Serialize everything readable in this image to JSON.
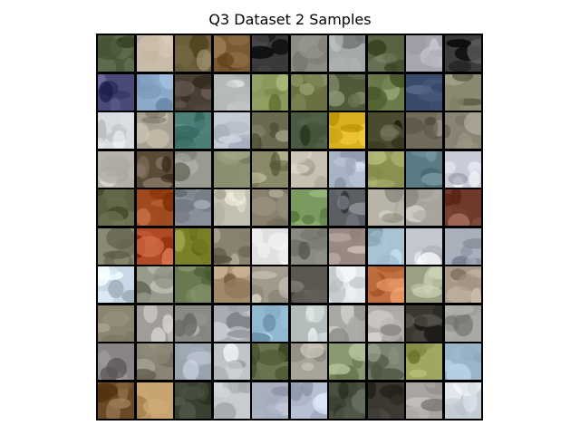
{
  "figure": {
    "title": "Q3 Dataset 2 Samples"
  },
  "grid": {
    "rows": 10,
    "cols": 10,
    "samples": [
      [
        "#4d5a3c",
        "#c8bba8",
        "#6a5f3a",
        "#7a5a32",
        "#3a3838",
        "#8c8c84",
        "#a4a8a6",
        "#5a6244",
        "#a8a4b0",
        "#3c3c3c"
      ],
      [
        "#4a4a7a",
        "#8aa8c8",
        "#4a3f34",
        "#b4b8b8",
        "#8a9a5c",
        "#6a7040",
        "#505a3a",
        "#6a7a4a",
        "#3a4a6a",
        "#8a8870"
      ],
      [
        "#d8dce0",
        "#a8a090",
        "#4a8078",
        "#c4ccd8",
        "#6a6a50",
        "#4a5a40",
        "#d8b020",
        "#4a4a30",
        "#706a5a",
        "#8a8474"
      ],
      [
        "#b8b4ac",
        "#5a4a38",
        "#9a9a90",
        "#8a9070",
        "#8a8a6a",
        "#c8c0b0",
        "#a8b4c4",
        "#8a9050",
        "#5a7a84",
        "#c8ccd8"
      ],
      [
        "#5a6040",
        "#a04a20",
        "#8a909a",
        "#c4c0b0",
        "#8a8070",
        "#7a9a60",
        "#5a5f64",
        "#b8b4a8",
        "#a8a49c",
        "#703a2a"
      ],
      [
        "#8a8a74",
        "#b04a24",
        "#7a8028",
        "#8a8270",
        "#e0e0e0",
        "#8a8a80",
        "#9a8a84",
        "#a8c4d4",
        "#c4c8d0",
        "#a8b0bc"
      ],
      [
        "#c8d8e4",
        "#9a9a8c",
        "#6a7a50",
        "#a08a6a",
        "#a09a8c",
        "#5a5850",
        "#e4e8ec",
        "#c07040",
        "#9aa084",
        "#a89a88"
      ],
      [
        "#8a8470",
        "#a09c98",
        "#8a8a84",
        "#a8acb4",
        "#90b8d0",
        "#b4bcbc",
        "#a8a8a4",
        "#b0aca8",
        "#3a3830",
        "#a8a8a4"
      ],
      [
        "#8a8484",
        "#8a8474",
        "#9aa4b0",
        "#c0c4c8",
        "#6a7450",
        "#a8a498",
        "#8a9a70",
        "#7a8470",
        "#a0a860",
        "#9ab4c8"
      ],
      [
        "#6a4a24",
        "#c8a470",
        "#3a4030",
        "#c8ccd0",
        "#a8b0c0",
        "#b8c0d4",
        "#4a5040",
        "#3a3830",
        "#a8a4a0",
        "#c4ccd4"
      ]
    ]
  }
}
